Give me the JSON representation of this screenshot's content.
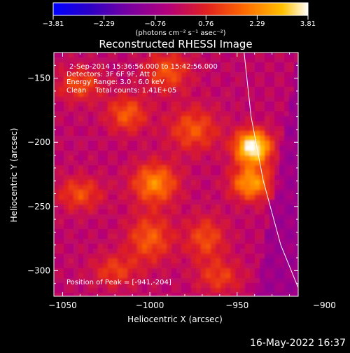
{
  "chart_data": {
    "type": "heatmap",
    "title": "Reconstructed RHESSI Image",
    "xlabel": "Heliocentric X (arcsec)",
    "ylabel": "Heliocentric Y (arcsec)",
    "xlim": [
      -1055,
      -915
    ],
    "ylim": [
      -320,
      -130
    ],
    "xticks": [
      -1050,
      -1000,
      -950,
      -900
    ],
    "yticks": [
      -150,
      -200,
      -250,
      -300
    ],
    "xtick_labels": [
      "−1050",
      "−1000",
      "−950",
      "−900"
    ],
    "ytick_labels": [
      "−150",
      "−200",
      "−250",
      "−300"
    ],
    "colorbar": {
      "min": -3.81,
      "max": 3.81,
      "ticks": [
        -3.81,
        -2.29,
        -0.76,
        0.76,
        2.29,
        3.81
      ],
      "tick_labels": [
        "−3.81",
        "−2.29",
        "−0.76",
        "0.76",
        "2.29",
        "3.81"
      ],
      "unit_label": "(photons cm⁻² s⁻¹ asec⁻²)"
    },
    "annotations": {
      "time_range": "2-Sep-2014 15:36:56.000 to 15:42:56.000",
      "detectors": "Detectors: 3F 6F 9F, Att 0",
      "energy_range": "Energy Range: 3.0 - 6.0 keV",
      "clean_counts": "Clean    Total counts: 1.41E+05",
      "peak_position": "Position of Peak = [-941,-204]"
    },
    "peak": [
      -941,
      -204
    ],
    "sources": [
      {
        "x": -941,
        "y": -204,
        "intensity": 3.81
      },
      {
        "x": -942,
        "y": -232,
        "intensity": 2.3
      },
      {
        "x": -997,
        "y": -232,
        "intensity": 2.0
      },
      {
        "x": -1013,
        "y": -178,
        "intensity": 1.4
      },
      {
        "x": -975,
        "y": -190,
        "intensity": 1.3
      },
      {
        "x": -1040,
        "y": -240,
        "intensity": 1.2
      },
      {
        "x": -1000,
        "y": -275,
        "intensity": 1.4
      },
      {
        "x": -968,
        "y": -275,
        "intensity": 1.2
      },
      {
        "x": -1020,
        "y": -300,
        "intensity": 1.0
      },
      {
        "x": -960,
        "y": -305,
        "intensity": 1.0
      },
      {
        "x": -990,
        "y": -145,
        "intensity": 1.3
      },
      {
        "x": -1040,
        "y": -155,
        "intensity": 1.2
      }
    ],
    "solar_limb_curve": [
      [
        -946,
        -130
      ],
      [
        -942,
        -180
      ],
      [
        -935,
        -230
      ],
      [
        -925,
        -280
      ],
      [
        -913,
        -320
      ]
    ],
    "colormap": [
      "#0000ff",
      "#2b00c8",
      "#7a00a0",
      "#b4007a",
      "#e02020",
      "#ff6a00",
      "#ffc000",
      "#ffffff"
    ]
  },
  "footer": {
    "timestamp": "16-May-2022 16:37"
  }
}
